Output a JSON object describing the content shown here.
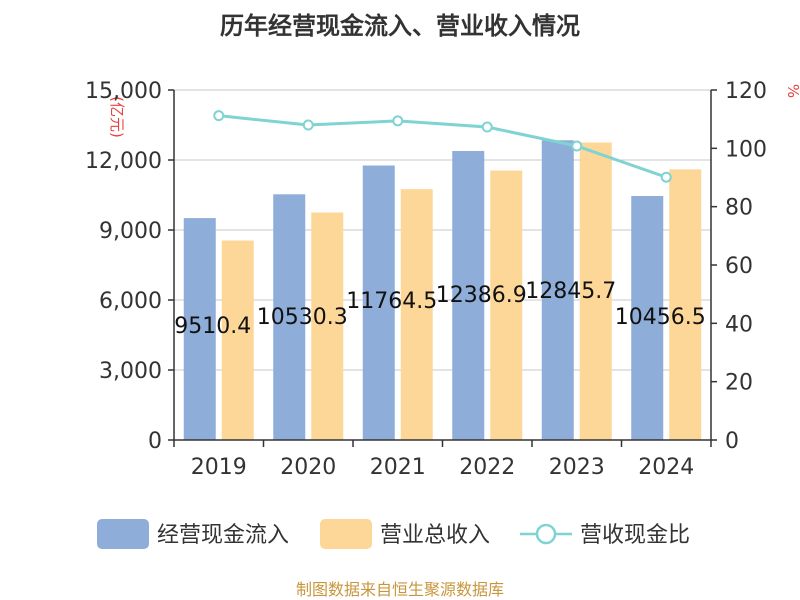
{
  "chart_data": {
    "type": "bar",
    "title": "历年经营现金流入、营业收入情况",
    "left_unit": "(亿元)",
    "right_unit": "%",
    "categories": [
      "2019",
      "2020",
      "2021",
      "2022",
      "2023",
      "2024"
    ],
    "left_axis": {
      "min": 0,
      "max": 15000,
      "ticks": [
        "0",
        "3,000",
        "6,000",
        "9,000",
        "12,000",
        "15,000"
      ]
    },
    "right_axis": {
      "min": 0,
      "max": 120,
      "ticks": [
        "0",
        "20",
        "40",
        "60",
        "80",
        "100",
        "120"
      ]
    },
    "series": [
      {
        "name": "经营现金流入",
        "kind": "bar",
        "axis": "left",
        "color": "#8eadd8",
        "values": [
          9510.4,
          10530.3,
          11764.5,
          12386.9,
          12845.7,
          10456.5
        ],
        "labels": [
          "9510.4",
          "10530.3",
          "11764.5",
          "12386.9",
          "12845.7",
          "10456.5"
        ]
      },
      {
        "name": "营业总收入",
        "kind": "bar",
        "axis": "left",
        "color": "#fdd797",
        "values": [
          8550,
          9750,
          10750,
          11550,
          12750,
          11600
        ]
      },
      {
        "name": "营收现金比",
        "kind": "line",
        "axis": "right",
        "color": "#7fd3d3",
        "values": [
          111.2,
          108.0,
          109.4,
          107.3,
          100.8,
          90.1
        ]
      }
    ],
    "grid": true,
    "legend_position": "bottom"
  },
  "source": "制图数据来自恒生聚源数据库"
}
